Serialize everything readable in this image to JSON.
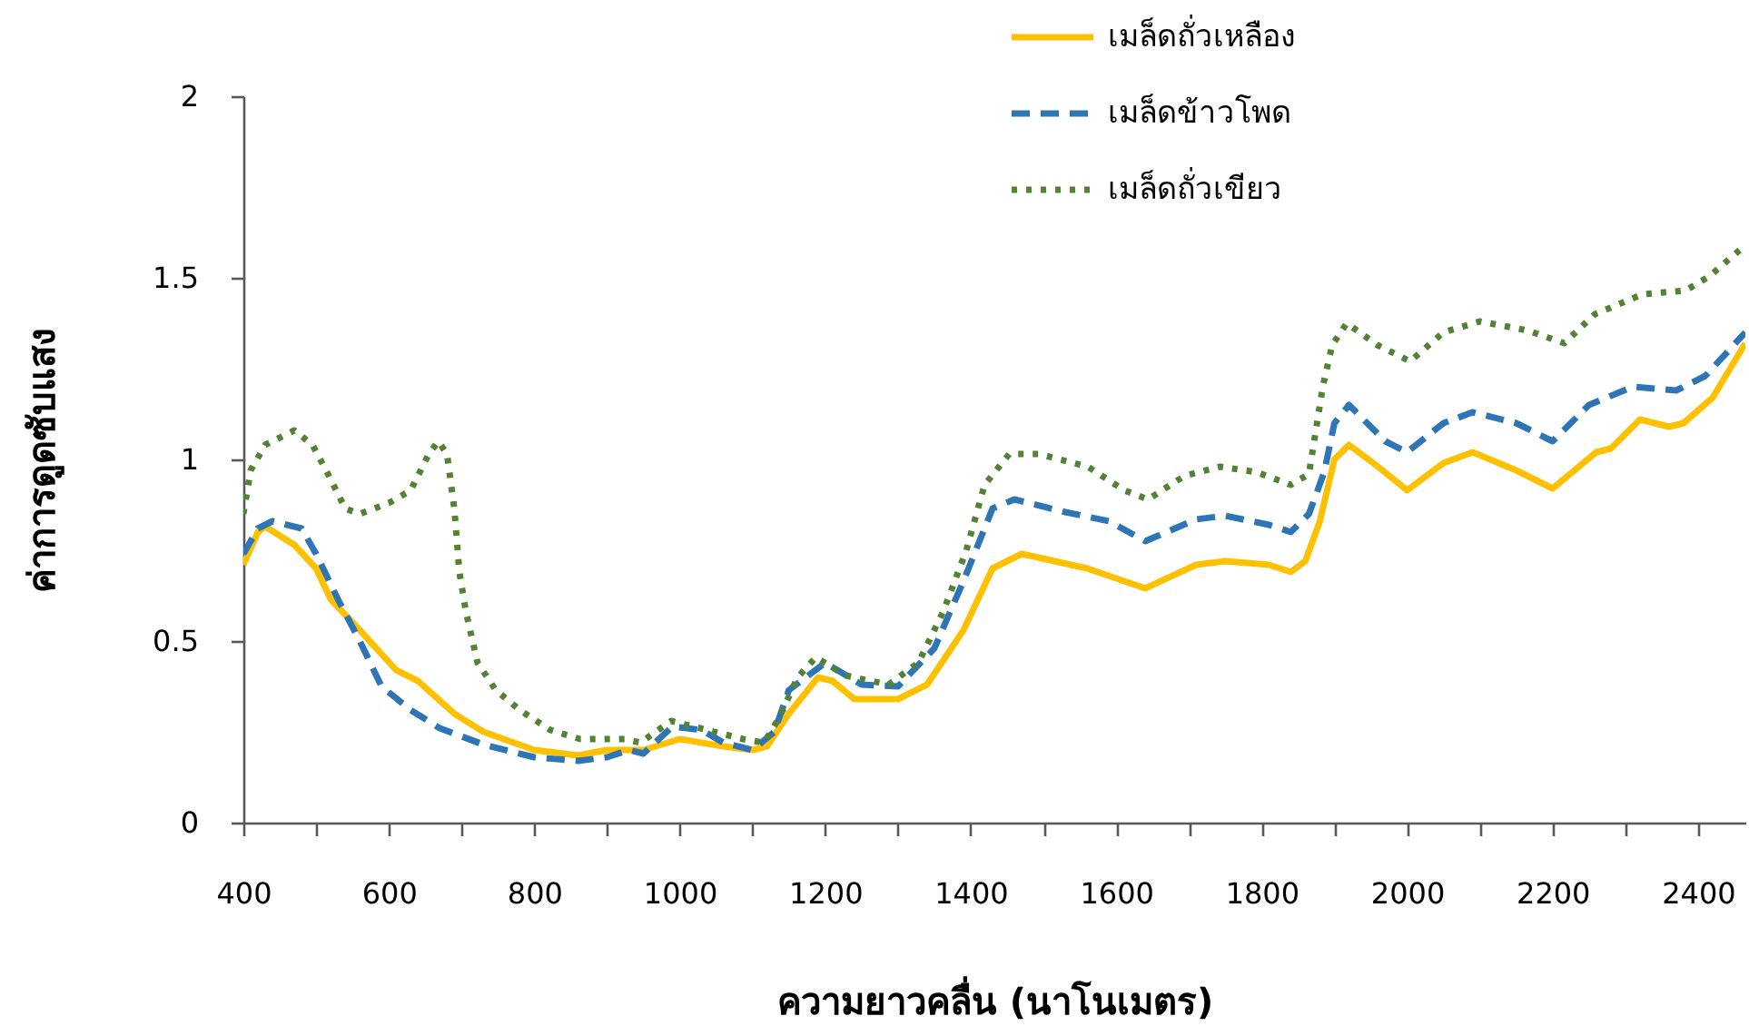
{
  "chart_data": {
    "type": "line",
    "xlabel": "ความยาวคลื่น (นาโนเมตร)",
    "ylabel": "ค่าการดูดซับแสง",
    "xlim": [
      400,
      2465
    ],
    "ylim": [
      0,
      2
    ],
    "xticks": [
      400,
      {
        "value": 500,
        "label": null
      },
      600,
      {
        "value": 700,
        "label": null
      },
      800,
      {
        "value": 900,
        "label": null
      },
      1000,
      {
        "value": 1100,
        "label": null
      },
      1200,
      {
        "value": 1300,
        "label": null
      },
      1400,
      {
        "value": 1500,
        "label": null
      },
      1600,
      {
        "value": 1700,
        "label": null
      },
      1800,
      {
        "value": 1900,
        "label": null
      },
      2000,
      {
        "value": 2100,
        "label": null
      },
      2200,
      {
        "value": 2300,
        "label": null
      },
      2400
    ],
    "yticks": [
      0,
      0.5,
      1,
      1.5,
      2
    ],
    "grid": false,
    "legend": "top",
    "series": [
      {
        "name": "เมล็ดถั่วเหลือง",
        "color": "#ffc000",
        "line_style": "solid",
        "x": [
          400,
          420,
          430,
          470,
          500,
          520,
          560,
          610,
          640,
          690,
          730,
          800,
          860,
          900,
          950,
          1000,
          1060,
          1100,
          1120,
          1150,
          1190,
          1210,
          1240,
          1300,
          1340,
          1390,
          1430,
          1470,
          1560,
          1640,
          1710,
          1750,
          1810,
          1840,
          1860,
          1880,
          1900,
          1920,
          1960,
          2000,
          2050,
          2090,
          2150,
          2200,
          2260,
          2280,
          2320,
          2360,
          2380,
          2420,
          2465
        ],
        "values": [
          0.71,
          0.8,
          0.815,
          0.765,
          0.7,
          0.615,
          0.53,
          0.42,
          0.39,
          0.3,
          0.25,
          0.2,
          0.185,
          0.2,
          0.2,
          0.23,
          0.21,
          0.2,
          0.21,
          0.3,
          0.4,
          0.39,
          0.34,
          0.34,
          0.38,
          0.53,
          0.7,
          0.74,
          0.7,
          0.645,
          0.71,
          0.72,
          0.71,
          0.69,
          0.72,
          0.83,
          1.0,
          1.04,
          0.98,
          0.915,
          0.99,
          1.02,
          0.97,
          0.92,
          1.02,
          1.03,
          1.11,
          1.09,
          1.1,
          1.17,
          1.32
        ]
      },
      {
        "name": "เมล็ดข้าวโพด",
        "color": "#2e75b6",
        "line_style": "dashed",
        "x": [
          400,
          420,
          440,
          480,
          500,
          530,
          560,
          590,
          630,
          670,
          730,
          800,
          860,
          900,
          930,
          950,
          990,
          1030,
          1060,
          1100,
          1130,
          1150,
          1200,
          1250,
          1300,
          1350,
          1390,
          1430,
          1460,
          1530,
          1590,
          1640,
          1710,
          1750,
          1810,
          1840,
          1865,
          1886,
          1900,
          1920,
          1970,
          2000,
          2050,
          2090,
          2150,
          2200,
          2250,
          2310,
          2370,
          2410,
          2465
        ],
        "values": [
          0.74,
          0.81,
          0.83,
          0.81,
          0.74,
          0.615,
          0.5,
          0.375,
          0.31,
          0.26,
          0.215,
          0.18,
          0.17,
          0.18,
          0.2,
          0.19,
          0.265,
          0.255,
          0.22,
          0.2,
          0.25,
          0.365,
          0.44,
          0.38,
          0.375,
          0.48,
          0.665,
          0.865,
          0.89,
          0.855,
          0.83,
          0.775,
          0.835,
          0.845,
          0.82,
          0.8,
          0.85,
          0.965,
          1.1,
          1.15,
          1.05,
          1.02,
          1.1,
          1.13,
          1.1,
          1.05,
          1.15,
          1.2,
          1.19,
          1.23,
          1.35
        ]
      },
      {
        "name": "เมล็ดถั่วเขียว",
        "color": "#548235",
        "line_style": "dotted",
        "x": [
          400,
          410,
          430,
          470,
          495,
          515,
          540,
          560,
          600,
          630,
          655,
          668,
          680,
          690,
          697,
          706,
          722,
          747,
          780,
          822,
          863,
          925,
          946,
          988,
          1038,
          1087,
          1116,
          1137,
          1162,
          1187,
          1228,
          1287,
          1328,
          1362,
          1394,
          1419,
          1453,
          1494,
          1561,
          1611,
          1644,
          1694,
          1743,
          1793,
          1840,
          1865,
          1884,
          1897,
          1917,
          1959,
          2004,
          2050,
          2100,
          2166,
          2216,
          2258,
          2324,
          2383,
          2416,
          2465
        ],
        "values": [
          0.85,
          0.97,
          1.04,
          1.08,
          1.04,
          0.965,
          0.865,
          0.85,
          0.88,
          0.915,
          1.015,
          1.05,
          1.015,
          0.865,
          0.69,
          0.58,
          0.44,
          0.365,
          0.31,
          0.255,
          0.23,
          0.23,
          0.22,
          0.28,
          0.255,
          0.23,
          0.22,
          0.29,
          0.4,
          0.455,
          0.405,
          0.38,
          0.44,
          0.58,
          0.75,
          0.93,
          1.015,
          1.015,
          0.98,
          0.915,
          0.89,
          0.955,
          0.98,
          0.965,
          0.93,
          0.96,
          1.2,
          1.315,
          1.375,
          1.315,
          1.27,
          1.35,
          1.38,
          1.355,
          1.32,
          1.4,
          1.455,
          1.465,
          1.505,
          1.59
        ]
      }
    ]
  }
}
